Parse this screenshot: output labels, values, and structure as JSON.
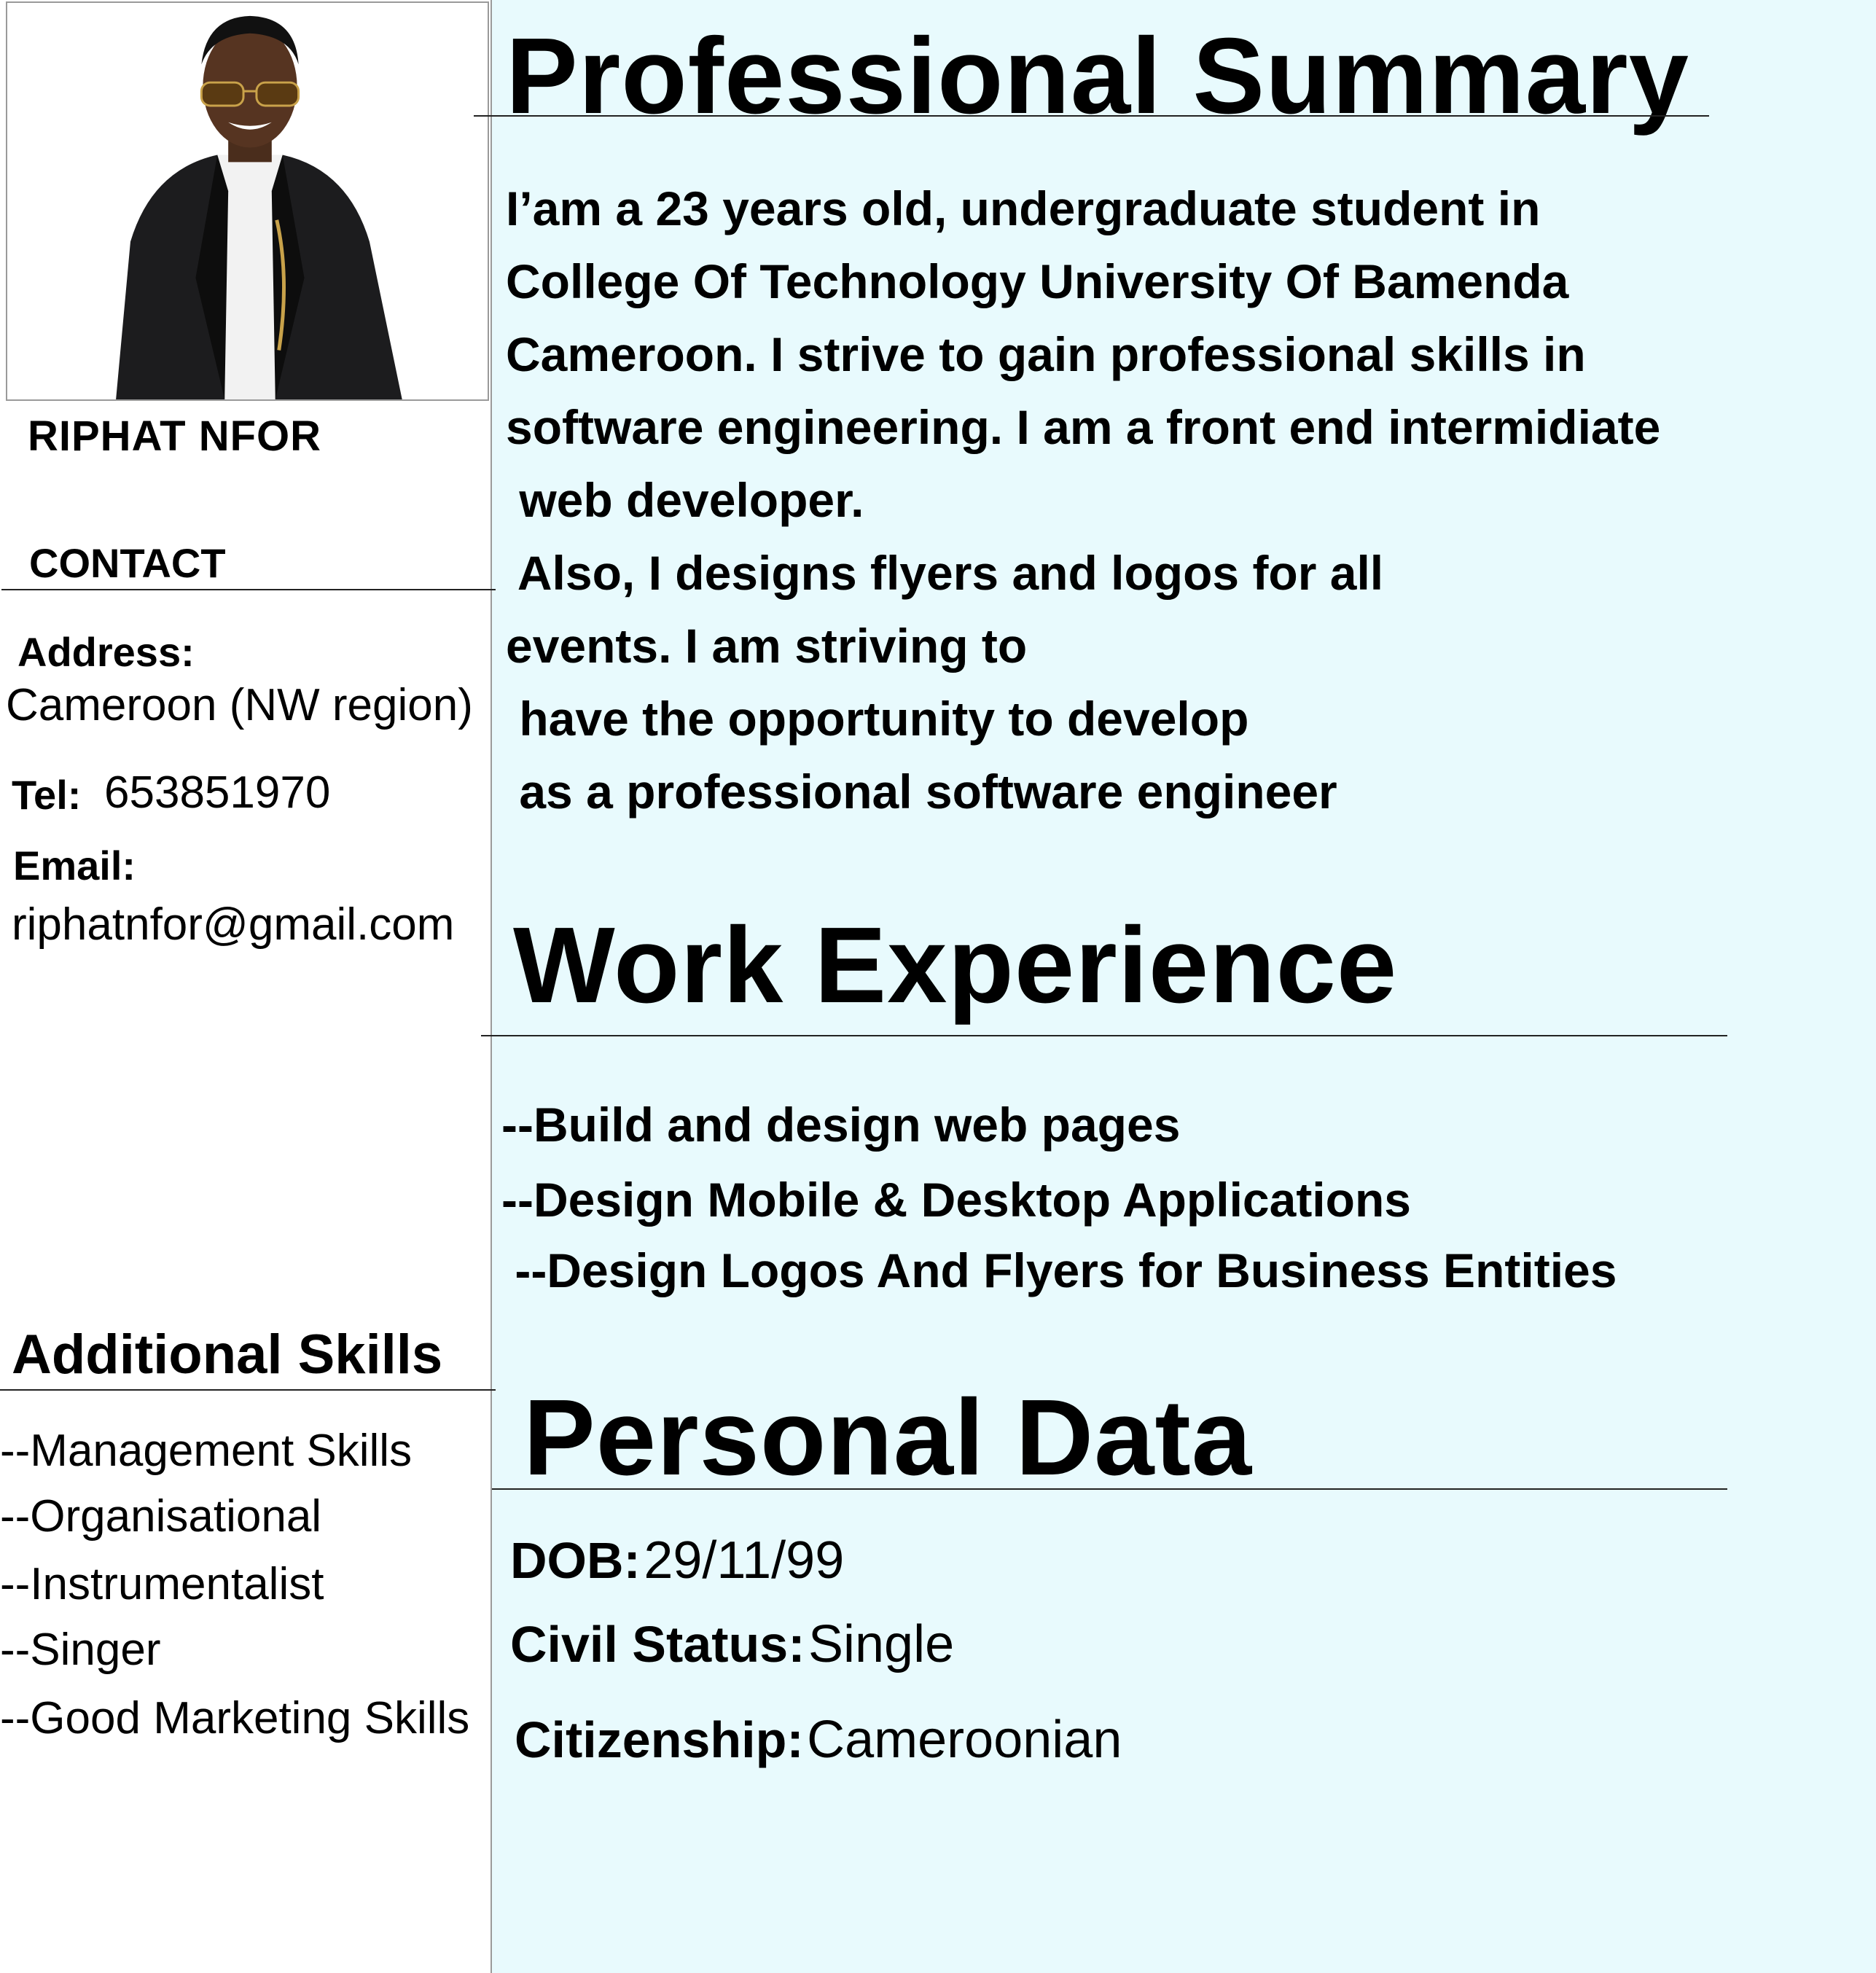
{
  "profile": {
    "name": "RIPHAT NFOR"
  },
  "contact": {
    "heading": "CONTACT",
    "address_label": "Address:",
    "address_value": "Cameroon (NW region)",
    "tel_label": "Tel:",
    "tel_value": "653851970",
    "email_label": "Email:",
    "email_value": "riphatnfor@gmail.com"
  },
  "additional_skills": {
    "heading": "Additional Skills",
    "items": [
      "--Management Skills",
      "--Organisational",
      "--Instrumentalist",
      "--Singer",
      "--Good Marketing Skills"
    ]
  },
  "summary": {
    "heading": "Professional Summary",
    "lines": [
      "I’am a 23 years old, undergraduate student in",
      "College Of Technology University Of  Bamenda",
      "Cameroon. I strive to gain professional skills in",
      "software engineering. I am a front end intermidiate",
      " web developer.",
      " Also, I designs flyers and logos for all",
      "events. I am striving to",
      " have the opportunity to develop",
      " as a professional software engineer"
    ]
  },
  "work": {
    "heading": "Work Experience",
    "items": [
      "--Build and design web pages",
      "--Design Mobile & Desktop Applications",
      " --Design Logos And Flyers for Business Entities"
    ]
  },
  "personal": {
    "heading": "Personal Data",
    "dob_label": "DOB:",
    "dob_value": "29/11/99",
    "civil_label": "Civil Status:",
    "civil_value": "Single",
    "citizenship_label": "Citizenship:",
    "citizenship_value": "Cameroonian"
  },
  "colors": {
    "right_panel_bg": "#e8fafd",
    "text": "#000000",
    "divider": "#9a9a9a"
  }
}
